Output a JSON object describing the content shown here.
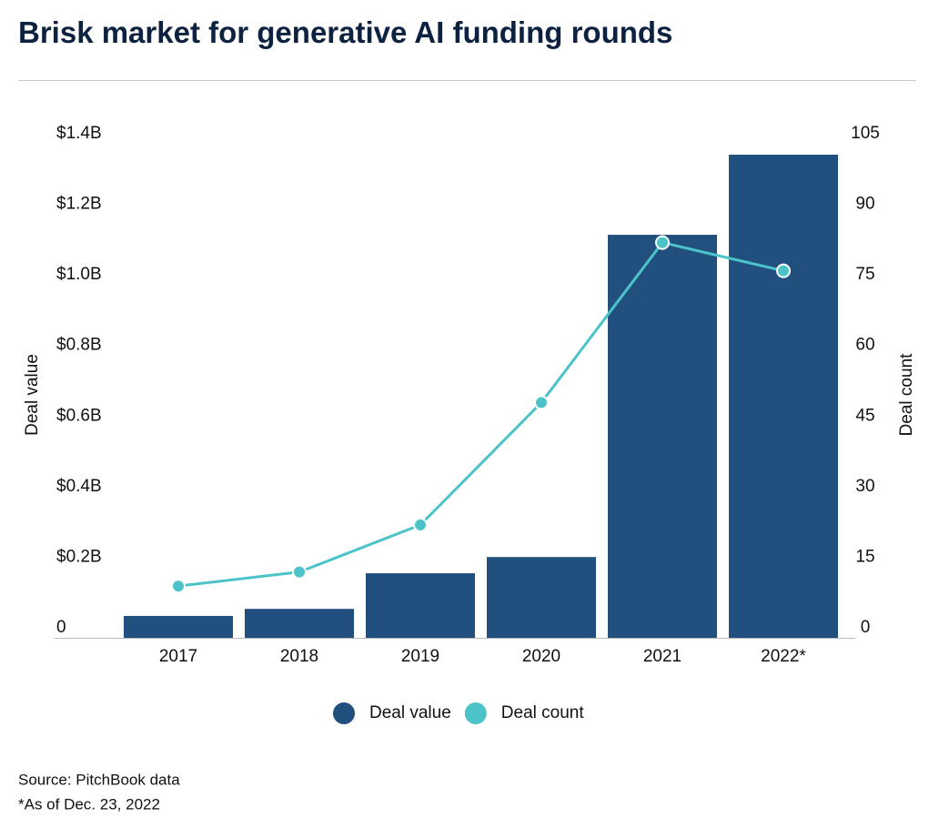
{
  "chart_data": {
    "type": "bar-line",
    "title": "Brisk market for generative AI funding rounds",
    "y_label": "Deal value",
    "y2_label": "Deal count",
    "categories": [
      "2017",
      "2018",
      "2019",
      "2020",
      "2021",
      "2022*"
    ],
    "series": [
      {
        "name": "Deal value",
        "type": "bar",
        "color": "#22507e",
        "values": [
          0.062,
          0.082,
          0.183,
          0.229,
          1.142,
          1.369
        ]
      },
      {
        "name": "Deal count",
        "type": "line",
        "axis": "y2",
        "color": "#4cc3c9",
        "values": [
          11,
          14,
          24,
          50,
          84,
          78
        ]
      }
    ],
    "ylim": [
      0,
      1.4
    ],
    "yticks": [
      0,
      {
        "value": 0.2,
        "label": "$0.2B"
      },
      {
        "value": 0.4,
        "label": "$0.4B"
      },
      {
        "value": 0.6,
        "label": "$0.6B"
      },
      {
        "value": 0.8,
        "label": "$0.8B"
      },
      {
        "value": 1,
        "label": "$1.0B"
      },
      {
        "value": 1.2,
        "label": "$1.2B"
      },
      {
        "value": 1.4,
        "label": "$1.4B"
      }
    ],
    "y2lim": [
      0,
      105
    ],
    "y2ticks": [
      0,
      15,
      30,
      45,
      60,
      75,
      90,
      105
    ],
    "grid": false,
    "legend": "bottom",
    "notes": [
      "Source: PitchBook data",
      "*As of Dec. 23, 2022"
    ]
  }
}
